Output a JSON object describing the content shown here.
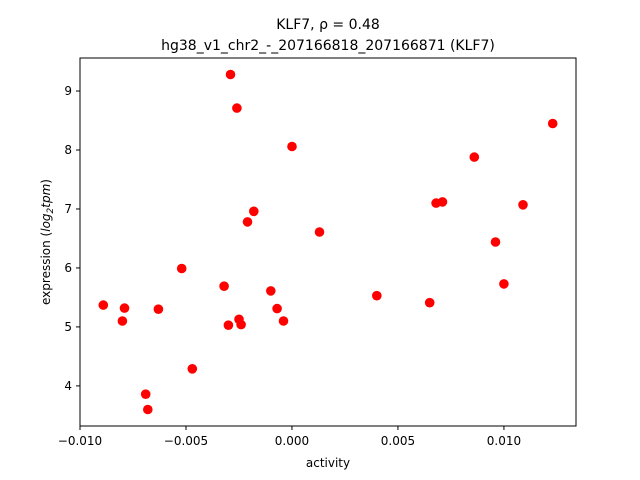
{
  "chart_data": {
    "type": "scatter",
    "title_line1": "KLF7, ρ = 0.48",
    "title_line2": "hg38_v1_chr2_-_207166818_207166871 (KLF7)",
    "xlabel": "activity",
    "ylabel_prefix": "expression (",
    "ylabel_math": "log",
    "ylabel_sub": "2",
    "ylabel_suffix_math": "tpm",
    "ylabel_end": ")",
    "xlim": [
      -0.01,
      0.0134
    ],
    "ylim": [
      3.32,
      9.56
    ],
    "xticks": [
      {
        "value": -0.01,
        "label": "−0.010"
      },
      {
        "value": -0.005,
        "label": "−0.005"
      },
      {
        "value": 0.0,
        "label": "0.000"
      },
      {
        "value": 0.005,
        "label": "0.005"
      },
      {
        "value": 0.01,
        "label": "0.010"
      }
    ],
    "yticks": [
      {
        "value": 4,
        "label": "4"
      },
      {
        "value": 5,
        "label": "5"
      },
      {
        "value": 6,
        "label": "6"
      },
      {
        "value": 7,
        "label": "7"
      },
      {
        "value": 8,
        "label": "8"
      },
      {
        "value": 9,
        "label": "9"
      }
    ],
    "marker_color": "#ff0000",
    "points": [
      {
        "x": -0.0089,
        "y": 5.37
      },
      {
        "x": -0.008,
        "y": 5.1
      },
      {
        "x": -0.0079,
        "y": 5.32
      },
      {
        "x": -0.0069,
        "y": 3.86
      },
      {
        "x": -0.0068,
        "y": 3.6
      },
      {
        "x": -0.0063,
        "y": 5.3
      },
      {
        "x": -0.0052,
        "y": 5.99
      },
      {
        "x": -0.0047,
        "y": 4.29
      },
      {
        "x": -0.0032,
        "y": 5.69
      },
      {
        "x": -0.0029,
        "y": 9.28
      },
      {
        "x": -0.003,
        "y": 5.03
      },
      {
        "x": -0.0026,
        "y": 8.71
      },
      {
        "x": -0.0025,
        "y": 5.13
      },
      {
        "x": -0.0024,
        "y": 5.04
      },
      {
        "x": -0.0021,
        "y": 6.78
      },
      {
        "x": -0.0018,
        "y": 6.96
      },
      {
        "x": -0.001,
        "y": 5.61
      },
      {
        "x": -0.0007,
        "y": 5.31
      },
      {
        "x": -0.0004,
        "y": 5.1
      },
      {
        "x": 0.0,
        "y": 8.06
      },
      {
        "x": 0.0013,
        "y": 6.61
      },
      {
        "x": 0.004,
        "y": 5.53
      },
      {
        "x": 0.0065,
        "y": 5.41
      },
      {
        "x": 0.0068,
        "y": 7.1
      },
      {
        "x": 0.0071,
        "y": 7.12
      },
      {
        "x": 0.0086,
        "y": 7.88
      },
      {
        "x": 0.0096,
        "y": 6.44
      },
      {
        "x": 0.01,
        "y": 5.73
      },
      {
        "x": 0.0109,
        "y": 7.07
      },
      {
        "x": 0.0123,
        "y": 8.45
      }
    ]
  }
}
